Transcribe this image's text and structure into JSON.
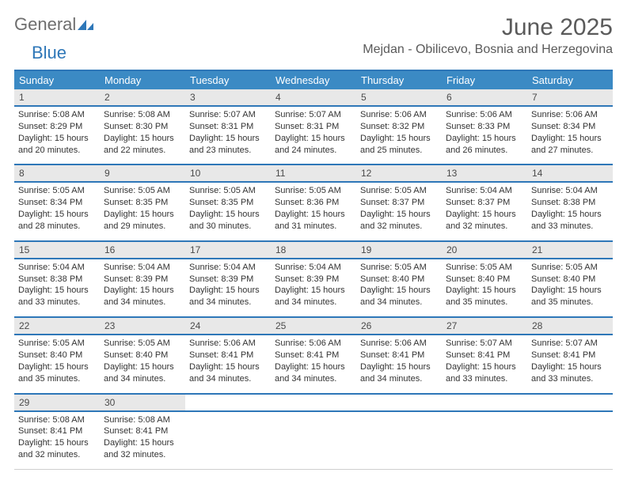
{
  "logo": {
    "text1": "General",
    "text2": "Blue",
    "color_gray": "#6e6e6e",
    "color_blue": "#2e77b8"
  },
  "title": "June 2025",
  "location": "Mejdan - Obilicevo, Bosnia and Herzegovina",
  "day_headers": [
    "Sunday",
    "Monday",
    "Tuesday",
    "Wednesday",
    "Thursday",
    "Friday",
    "Saturday"
  ],
  "colors": {
    "header_bg": "#3b8ac4",
    "border_blue": "#2e77b8",
    "daynum_bg": "#e8e8e8",
    "text_gray": "#5a5a5a"
  },
  "weeks": [
    {
      "nums": [
        "1",
        "2",
        "3",
        "4",
        "5",
        "6",
        "7"
      ],
      "cells": [
        {
          "sunrise": "Sunrise: 5:08 AM",
          "sunset": "Sunset: 8:29 PM",
          "day1": "Daylight: 15 hours",
          "day2": "and 20 minutes."
        },
        {
          "sunrise": "Sunrise: 5:08 AM",
          "sunset": "Sunset: 8:30 PM",
          "day1": "Daylight: 15 hours",
          "day2": "and 22 minutes."
        },
        {
          "sunrise": "Sunrise: 5:07 AM",
          "sunset": "Sunset: 8:31 PM",
          "day1": "Daylight: 15 hours",
          "day2": "and 23 minutes."
        },
        {
          "sunrise": "Sunrise: 5:07 AM",
          "sunset": "Sunset: 8:31 PM",
          "day1": "Daylight: 15 hours",
          "day2": "and 24 minutes."
        },
        {
          "sunrise": "Sunrise: 5:06 AM",
          "sunset": "Sunset: 8:32 PM",
          "day1": "Daylight: 15 hours",
          "day2": "and 25 minutes."
        },
        {
          "sunrise": "Sunrise: 5:06 AM",
          "sunset": "Sunset: 8:33 PM",
          "day1": "Daylight: 15 hours",
          "day2": "and 26 minutes."
        },
        {
          "sunrise": "Sunrise: 5:06 AM",
          "sunset": "Sunset: 8:34 PM",
          "day1": "Daylight: 15 hours",
          "day2": "and 27 minutes."
        }
      ]
    },
    {
      "nums": [
        "8",
        "9",
        "10",
        "11",
        "12",
        "13",
        "14"
      ],
      "cells": [
        {
          "sunrise": "Sunrise: 5:05 AM",
          "sunset": "Sunset: 8:34 PM",
          "day1": "Daylight: 15 hours",
          "day2": "and 28 minutes."
        },
        {
          "sunrise": "Sunrise: 5:05 AM",
          "sunset": "Sunset: 8:35 PM",
          "day1": "Daylight: 15 hours",
          "day2": "and 29 minutes."
        },
        {
          "sunrise": "Sunrise: 5:05 AM",
          "sunset": "Sunset: 8:35 PM",
          "day1": "Daylight: 15 hours",
          "day2": "and 30 minutes."
        },
        {
          "sunrise": "Sunrise: 5:05 AM",
          "sunset": "Sunset: 8:36 PM",
          "day1": "Daylight: 15 hours",
          "day2": "and 31 minutes."
        },
        {
          "sunrise": "Sunrise: 5:05 AM",
          "sunset": "Sunset: 8:37 PM",
          "day1": "Daylight: 15 hours",
          "day2": "and 32 minutes."
        },
        {
          "sunrise": "Sunrise: 5:04 AM",
          "sunset": "Sunset: 8:37 PM",
          "day1": "Daylight: 15 hours",
          "day2": "and 32 minutes."
        },
        {
          "sunrise": "Sunrise: 5:04 AM",
          "sunset": "Sunset: 8:38 PM",
          "day1": "Daylight: 15 hours",
          "day2": "and 33 minutes."
        }
      ]
    },
    {
      "nums": [
        "15",
        "16",
        "17",
        "18",
        "19",
        "20",
        "21"
      ],
      "cells": [
        {
          "sunrise": "Sunrise: 5:04 AM",
          "sunset": "Sunset: 8:38 PM",
          "day1": "Daylight: 15 hours",
          "day2": "and 33 minutes."
        },
        {
          "sunrise": "Sunrise: 5:04 AM",
          "sunset": "Sunset: 8:39 PM",
          "day1": "Daylight: 15 hours",
          "day2": "and 34 minutes."
        },
        {
          "sunrise": "Sunrise: 5:04 AM",
          "sunset": "Sunset: 8:39 PM",
          "day1": "Daylight: 15 hours",
          "day2": "and 34 minutes."
        },
        {
          "sunrise": "Sunrise: 5:04 AM",
          "sunset": "Sunset: 8:39 PM",
          "day1": "Daylight: 15 hours",
          "day2": "and 34 minutes."
        },
        {
          "sunrise": "Sunrise: 5:05 AM",
          "sunset": "Sunset: 8:40 PM",
          "day1": "Daylight: 15 hours",
          "day2": "and 34 minutes."
        },
        {
          "sunrise": "Sunrise: 5:05 AM",
          "sunset": "Sunset: 8:40 PM",
          "day1": "Daylight: 15 hours",
          "day2": "and 35 minutes."
        },
        {
          "sunrise": "Sunrise: 5:05 AM",
          "sunset": "Sunset: 8:40 PM",
          "day1": "Daylight: 15 hours",
          "day2": "and 35 minutes."
        }
      ]
    },
    {
      "nums": [
        "22",
        "23",
        "24",
        "25",
        "26",
        "27",
        "28"
      ],
      "cells": [
        {
          "sunrise": "Sunrise: 5:05 AM",
          "sunset": "Sunset: 8:40 PM",
          "day1": "Daylight: 15 hours",
          "day2": "and 35 minutes."
        },
        {
          "sunrise": "Sunrise: 5:05 AM",
          "sunset": "Sunset: 8:40 PM",
          "day1": "Daylight: 15 hours",
          "day2": "and 34 minutes."
        },
        {
          "sunrise": "Sunrise: 5:06 AM",
          "sunset": "Sunset: 8:41 PM",
          "day1": "Daylight: 15 hours",
          "day2": "and 34 minutes."
        },
        {
          "sunrise": "Sunrise: 5:06 AM",
          "sunset": "Sunset: 8:41 PM",
          "day1": "Daylight: 15 hours",
          "day2": "and 34 minutes."
        },
        {
          "sunrise": "Sunrise: 5:06 AM",
          "sunset": "Sunset: 8:41 PM",
          "day1": "Daylight: 15 hours",
          "day2": "and 34 minutes."
        },
        {
          "sunrise": "Sunrise: 5:07 AM",
          "sunset": "Sunset: 8:41 PM",
          "day1": "Daylight: 15 hours",
          "day2": "and 33 minutes."
        },
        {
          "sunrise": "Sunrise: 5:07 AM",
          "sunset": "Sunset: 8:41 PM",
          "day1": "Daylight: 15 hours",
          "day2": "and 33 minutes."
        }
      ]
    },
    {
      "nums": [
        "29",
        "30",
        "",
        "",
        "",
        "",
        ""
      ],
      "cells": [
        {
          "sunrise": "Sunrise: 5:08 AM",
          "sunset": "Sunset: 8:41 PM",
          "day1": "Daylight: 15 hours",
          "day2": "and 32 minutes."
        },
        {
          "sunrise": "Sunrise: 5:08 AM",
          "sunset": "Sunset: 8:41 PM",
          "day1": "Daylight: 15 hours",
          "day2": "and 32 minutes."
        },
        null,
        null,
        null,
        null,
        null
      ]
    }
  ]
}
